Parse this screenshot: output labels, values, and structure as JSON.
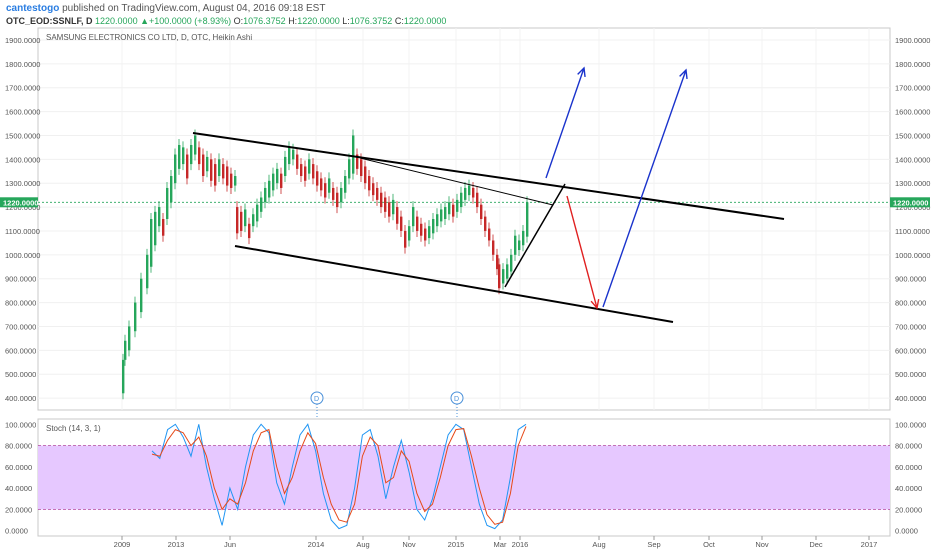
{
  "header": {
    "author": "cantestogo",
    "published_text": "published on TradingView.com, August 04, 2016 09:18 EST",
    "symbol": "OTC_EOD:SSNLF, D",
    "last": "1220.0000",
    "change_arrow": "▲",
    "change": "+100.0000 (+8.93%)",
    "o_label": "O:",
    "o_val": "1076.3752",
    "h_label": "H:",
    "h_val": "1220.0000",
    "l_label": "L:",
    "l_val": "1076.3752",
    "c_label": "C:",
    "c_val": "1220.0000"
  },
  "colors": {
    "up": "#26a65b",
    "down": "#c62828",
    "trendline": "#000000",
    "arrow_up": "#1a33cc",
    "arrow_down": "#e02020",
    "stoch_k": "#2196f3",
    "stoch_d": "#e64a19",
    "stoch_band": "#e6c8ff"
  },
  "chart_data": [
    {
      "type": "candlestick",
      "title": "SAMSUNG ELECTRONICS CO LTD, D, OTC, Heikin Ashi",
      "ylim": [
        350,
        1950
      ],
      "y_ticks": [
        "1900.0000",
        "1800.0000",
        "1700.0000",
        "1600.0000",
        "1500.0000",
        "1400.0000",
        "1300.0000",
        "1200.0000",
        "1100.0000",
        "1000.0000",
        "900.0000",
        "800.0000",
        "700.0000",
        "600.0000",
        "500.0000",
        "400.0000"
      ],
      "last_price_label": "1220.0000",
      "last_price": 1220,
      "x_labels": [
        "2009",
        "2013",
        "Jun",
        "2014",
        "Aug",
        "Nov",
        "2015",
        "Mar",
        "2016",
        "Aug",
        "Sep",
        "Oct",
        "Nov",
        "Dec",
        "2017"
      ],
      "event_markers": [
        "D",
        "D"
      ],
      "candles": [
        [
          1076,
          1220,
          1076,
          1220
        ]
      ],
      "trendlines": [
        {
          "name": "upper-channel",
          "from": [
            "2013",
            "1500"
          ],
          "to": [
            "Dec",
            "1150"
          ]
        },
        {
          "name": "lower-channel",
          "from": [
            "Jun",
            "1040"
          ],
          "to": [
            "Oct",
            "730"
          ]
        }
      ]
    },
    {
      "type": "line",
      "title": "Stoch (14, 3, 1)",
      "ylim": [
        -5,
        105
      ],
      "y_ticks": [
        "100.0000",
        "80.0000",
        "60.0000",
        "40.0000",
        "20.0000",
        "0.0000"
      ],
      "band": [
        20,
        80
      ],
      "series": [
        {
          "values": [
            75,
            68,
            95,
            100,
            88,
            70,
            100,
            60,
            30,
            5,
            40,
            20,
            60,
            90,
            100,
            92,
            45,
            25,
            60,
            90,
            100,
            75,
            35,
            10,
            2,
            5,
            40,
            90,
            95,
            70,
            30,
            60,
            85,
            55,
            20,
            10,
            30,
            60,
            90,
            100,
            95,
            60,
            25,
            5,
            2,
            10,
            50,
            95,
            100
          ]
        },
        {
          "values": [
            72,
            70,
            85,
            95,
            92,
            80,
            88,
            70,
            40,
            20,
            30,
            25,
            45,
            75,
            92,
            95,
            60,
            35,
            50,
            75,
            92,
            82,
            50,
            25,
            10,
            8,
            25,
            70,
            88,
            80,
            45,
            50,
            75,
            65,
            35,
            18,
            25,
            50,
            80,
            95,
            96,
            70,
            40,
            15,
            6,
            8,
            35,
            80,
            98
          ]
        }
      ]
    }
  ]
}
